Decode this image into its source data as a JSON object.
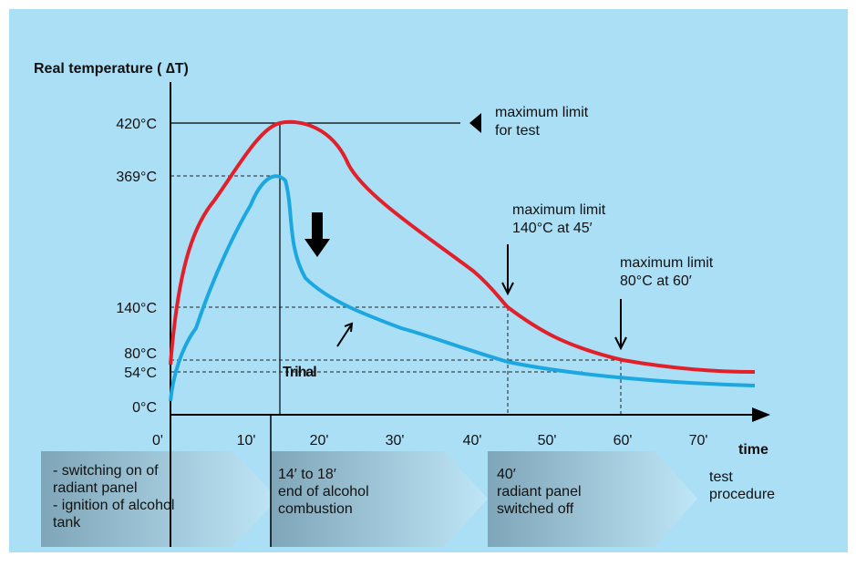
{
  "axis_title": "Real temperature ( ∆T)",
  "y_ticks": [
    "420°C",
    "369°C",
    "140°C",
    "80°C",
    "54°C",
    "0°C"
  ],
  "x_ticks": [
    "0'",
    "10'",
    "20'",
    "30'",
    "40'",
    "50'",
    "60'",
    "70'"
  ],
  "x_axis_label": "time",
  "annotations": {
    "test_limit": [
      "maximum limit",
      "for test"
    ],
    "limit_45": [
      "maximum limit",
      "140°C at 45′"
    ],
    "limit_60": [
      "maximum limit",
      "80°C at 60′"
    ],
    "brand": "Trihal"
  },
  "procedure": {
    "steps": [
      [
        "- switching on of",
        "radiant panel",
        "- ignition of alcohol",
        "tank"
      ],
      [
        "14′ to 18′",
        "end of alcohol",
        "combustion"
      ],
      [
        "40′",
        "radiant panel",
        "switched off"
      ]
    ],
    "label": [
      "test",
      "procedure"
    ]
  }
}
